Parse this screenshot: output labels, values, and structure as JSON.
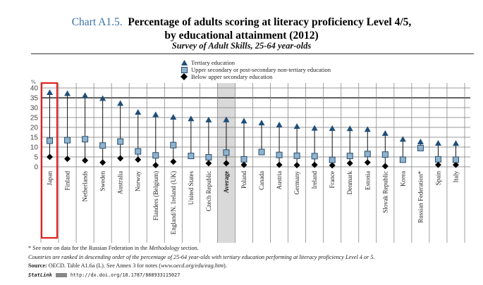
{
  "title": {
    "number": "Chart A1.5.",
    "line1": "Percentage of adults scoring at literacy proficiency Level 4/5,",
    "line2": "by educational attainment (2012)",
    "subtitle": "Survey of Adult Skills, 25-64 year-olds"
  },
  "legend": {
    "tertiary": "Tertiary education",
    "upper_secondary": "Upper secondary or post-secondary non-tertiary education",
    "below_upper_secondary": "Below upper secondary education"
  },
  "colors": {
    "tertiary": "#1f4e79",
    "upper_secondary": "#8fb4d0",
    "upper_secondary_border": "#2b4d6b",
    "below": "#000000",
    "title_number": "#3a6fa8",
    "highlight_box": "#e02020",
    "average_shade": "#d9d9d9"
  },
  "chart_data": {
    "type": "scatter",
    "ylabel": "%",
    "ylim": [
      0,
      40
    ],
    "yticks": [
      0,
      5,
      10,
      15,
      20,
      25,
      30,
      35,
      40
    ],
    "grid": true,
    "legend_position": "top-center",
    "highlighted_category": "Japan",
    "shaded_category": "Average",
    "categories": [
      "Japan",
      "Finland",
      "Netherlands",
      "Sweden",
      "Australia",
      "Norway",
      "Flanders (Belgium)",
      "England/N. Ireland (UK)",
      "United States",
      "Czech Republic",
      "Average",
      "Poland",
      "Canada",
      "Austria",
      "Germany",
      "Ireland",
      "France",
      "Denmark",
      "Estonia",
      "Slovak Republic",
      "Korea",
      "Russian Federation*",
      "Spain",
      "Italy"
    ],
    "series": [
      {
        "name": "Tertiary education",
        "marker": "triangle",
        "values": [
          37.5,
          37,
          36,
          34.5,
          32,
          27.5,
          26.3,
          25,
          24.2,
          23.6,
          23.7,
          23.1,
          22.1,
          21.1,
          20.3,
          19.4,
          19.3,
          19.2,
          18.8,
          16.8,
          13.8,
          12.5,
          11.8,
          11.7
        ]
      },
      {
        "name": "Upper secondary or post-secondary non-tertiary education",
        "marker": "square",
        "values": [
          13.2,
          13.5,
          14,
          10.8,
          12.8,
          7.8,
          5.8,
          11,
          5.5,
          4.8,
          7.2,
          3.8,
          7.5,
          6,
          5.6,
          5.4,
          3.5,
          5.5,
          6.5,
          6.2,
          3.6,
          9.5,
          3.8,
          3.6
        ]
      },
      {
        "name": "Below upper secondary education",
        "marker": "diamond",
        "values": [
          5,
          4,
          3.2,
          2.2,
          4.3,
          3.6,
          0.8,
          2.6,
          null,
          1.8,
          1.8,
          1,
          null,
          1,
          0.8,
          1,
          0.7,
          1.8,
          2.2,
          0.3,
          null,
          null,
          1,
          1
        ]
      }
    ]
  },
  "notes": {
    "russia_note_prefix": "* See note on data for the Russian Federation in the ",
    "russia_note_italic": "Methodology",
    "russia_note_suffix": " section.",
    "ranking_note": "Countries are ranked in descending order of the percentage of 25-64 year-olds with tertiary education performing at literacy proficiency Level 4 or 5.",
    "source_label": "Source:",
    "source_text": " OECD. Table A1.6a (L). See Annex 3 for notes (",
    "source_url": "www.oecd.org/edu/eag.htm",
    "source_end": ").",
    "statlink_label": "StatLink",
    "statlink_url": "http://dx.doi.org/10.1787/888933115027"
  }
}
